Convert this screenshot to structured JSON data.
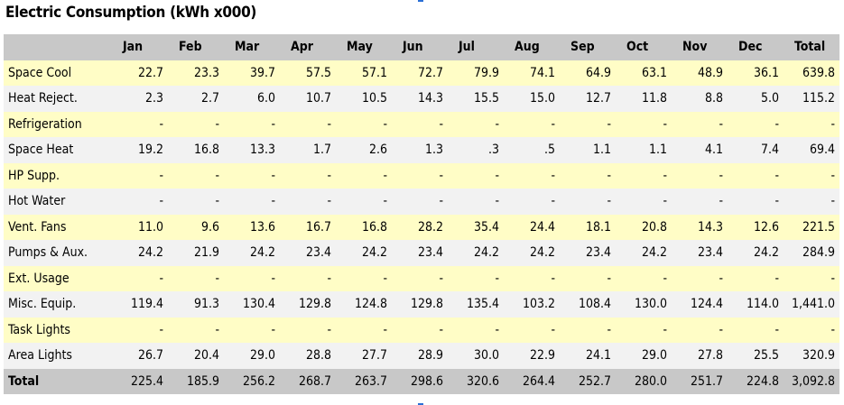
{
  "title": "Electric Consumption (kWh x000)",
  "table": {
    "headers": [
      "",
      "Jan",
      "Feb",
      "Mar",
      "Apr",
      "May",
      "Jun",
      "Jul",
      "Aug",
      "Sep",
      "Oct",
      "Nov",
      "Dec",
      "Total"
    ],
    "rows": [
      {
        "label": "Space Cool",
        "values": [
          "22.7",
          "23.3",
          "39.7",
          "57.5",
          "57.1",
          "72.7",
          "79.9",
          "74.1",
          "64.9",
          "63.1",
          "48.9",
          "36.1",
          "639.8"
        ]
      },
      {
        "label": "Heat Reject.",
        "values": [
          "2.3",
          "2.7",
          "6.0",
          "10.7",
          "10.5",
          "14.3",
          "15.5",
          "15.0",
          "12.7",
          "11.8",
          "8.8",
          "5.0",
          "115.2"
        ]
      },
      {
        "label": "Refrigeration",
        "values": [
          "-",
          "-",
          "-",
          "-",
          "-",
          "-",
          "-",
          "-",
          "-",
          "-",
          "-",
          "-",
          "-"
        ]
      },
      {
        "label": "Space Heat",
        "values": [
          "19.2",
          "16.8",
          "13.3",
          "1.7",
          "2.6",
          "1.3",
          ".3",
          ".5",
          "1.1",
          "1.1",
          "4.1",
          "7.4",
          "69.4"
        ]
      },
      {
        "label": "HP Supp.",
        "values": [
          "-",
          "-",
          "-",
          "-",
          "-",
          "-",
          "-",
          "-",
          "-",
          "-",
          "-",
          "-",
          "-"
        ]
      },
      {
        "label": "Hot Water",
        "values": [
          "-",
          "-",
          "-",
          "-",
          "-",
          "-",
          "-",
          "-",
          "-",
          "-",
          "-",
          "-",
          "-"
        ]
      },
      {
        "label": "Vent. Fans",
        "values": [
          "11.0",
          "9.6",
          "13.6",
          "16.7",
          "16.8",
          "28.2",
          "35.4",
          "24.4",
          "18.1",
          "20.8",
          "14.3",
          "12.6",
          "221.5"
        ]
      },
      {
        "label": "Pumps & Aux.",
        "values": [
          "24.2",
          "21.9",
          "24.2",
          "23.4",
          "24.2",
          "23.4",
          "24.2",
          "24.2",
          "23.4",
          "24.2",
          "23.4",
          "24.2",
          "284.9"
        ]
      },
      {
        "label": "Ext. Usage",
        "values": [
          "-",
          "-",
          "-",
          "-",
          "-",
          "-",
          "-",
          "-",
          "-",
          "-",
          "-",
          "-",
          "-"
        ]
      },
      {
        "label": "Misc. Equip.",
        "values": [
          "119.4",
          "91.3",
          "130.4",
          "129.8",
          "124.8",
          "129.8",
          "135.4",
          "103.2",
          "108.4",
          "130.0",
          "124.4",
          "114.0",
          "1,441.0"
        ]
      },
      {
        "label": "Task Lights",
        "values": [
          "-",
          "-",
          "-",
          "-",
          "-",
          "-",
          "-",
          "-",
          "-",
          "-",
          "-",
          "-",
          "-"
        ]
      },
      {
        "label": "Area Lights",
        "values": [
          "26.7",
          "20.4",
          "29.0",
          "28.8",
          "27.7",
          "28.9",
          "30.0",
          "22.9",
          "24.1",
          "29.0",
          "27.8",
          "25.5",
          "320.9"
        ]
      },
      {
        "label": "Total",
        "values": [
          "225.4",
          "185.9",
          "256.2",
          "268.7",
          "263.7",
          "298.6",
          "320.6",
          "264.4",
          "252.7",
          "280.0",
          "251.7",
          "224.8",
          "3,092.8"
        ]
      }
    ]
  },
  "colors": {
    "header_bg": "#c8c8c8",
    "row_odd_bg": "#fffdc6",
    "row_even_bg": "#f2f2f2",
    "marker": "#2a6fd6"
  }
}
